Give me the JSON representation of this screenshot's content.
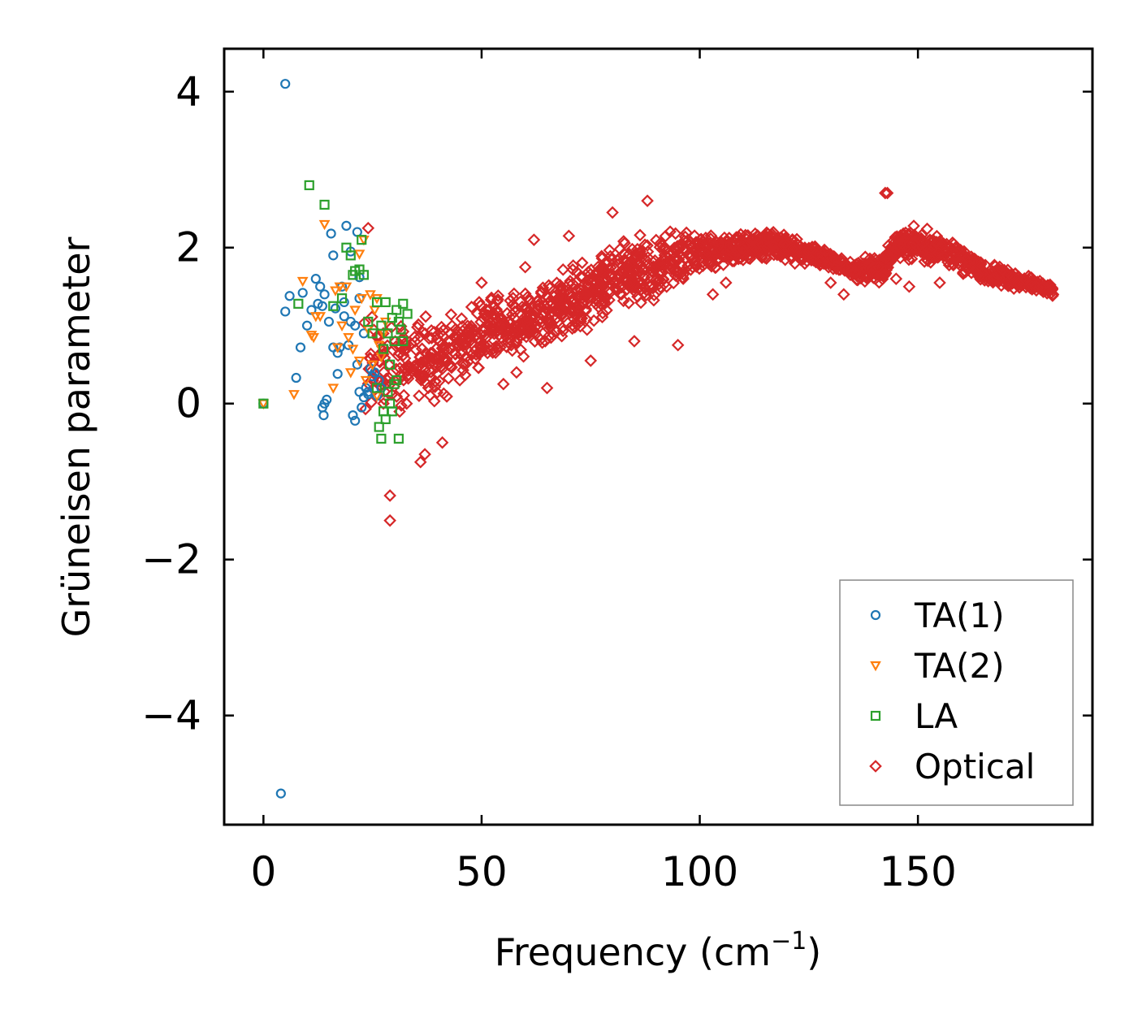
{
  "chart_data": {
    "type": "scatter",
    "title": "",
    "xlabel": "Frequency (cm",
    "xlabel_sup": "−1",
    "xlabel_close": ")",
    "ylabel": "Grüneisen parameter",
    "xlim": [
      -9,
      190
    ],
    "ylim": [
      -5.4,
      4.55
    ],
    "xticks": [
      0,
      50,
      100,
      150
    ],
    "xtick_labels": [
      "0",
      "50",
      "100",
      "150"
    ],
    "yticks": [
      -4,
      -2,
      0,
      2,
      4
    ],
    "ytick_labels": [
      "−4",
      "−2",
      "0",
      "2",
      "4"
    ],
    "grid": false,
    "legend_position": "bottom-right",
    "series": [
      {
        "name": "TA(1)",
        "marker": "circle",
        "color": "#1f77b4",
        "points": [
          [
            0,
            0
          ],
          [
            5,
            4.1
          ],
          [
            4,
            -5.0
          ],
          [
            5,
            1.18
          ],
          [
            6,
            1.38
          ],
          [
            7.5,
            0.33
          ],
          [
            8.5,
            0.72
          ],
          [
            9,
            1.42
          ],
          [
            10,
            1.0
          ],
          [
            11,
            1.2
          ],
          [
            12,
            1.6
          ],
          [
            12.5,
            1.28
          ],
          [
            13,
            1.5
          ],
          [
            13.5,
            1.25
          ],
          [
            14,
            1.4
          ],
          [
            13.5,
            -0.05
          ],
          [
            13.8,
            -0.15
          ],
          [
            14,
            0.0
          ],
          [
            14.5,
            0.05
          ],
          [
            15,
            1.05
          ],
          [
            15.5,
            2.18
          ],
          [
            16,
            1.9
          ],
          [
            16.5,
            1.22
          ],
          [
            17,
            0.65
          ],
          [
            17,
            0.38
          ],
          [
            17.5,
            0.72
          ],
          [
            18,
            1.5
          ],
          [
            18.5,
            1.12
          ],
          [
            19,
            2.28
          ],
          [
            19.5,
            0.75
          ],
          [
            20,
            1.95
          ],
          [
            20.5,
            -0.15
          ],
          [
            21,
            -0.22
          ],
          [
            21,
            1.0
          ],
          [
            21.5,
            2.2
          ],
          [
            22,
            1.62
          ],
          [
            22,
            0.15
          ],
          [
            22.5,
            -0.05
          ],
          [
            23,
            0.08
          ],
          [
            23.5,
            0.2
          ],
          [
            24,
            0.15
          ],
          [
            24.5,
            0.45
          ],
          [
            25,
            0.35
          ],
          [
            26,
            0.1
          ],
          [
            26.5,
            0.3
          ],
          [
            27,
            0.2
          ],
          [
            20,
            1.05
          ],
          [
            22,
            1.35
          ],
          [
            16,
            0.72
          ],
          [
            23,
            0.9
          ],
          [
            21.5,
            0.5
          ],
          [
            24,
            0.12
          ],
          [
            18.5,
            1.3
          ],
          [
            25.5,
            0.4
          ]
        ]
      },
      {
        "name": "TA(2)",
        "marker": "triangle-down",
        "color": "#ff7f0e",
        "points": [
          [
            0,
            0
          ],
          [
            7,
            0.12
          ],
          [
            9,
            1.57
          ],
          [
            11,
            0.88
          ],
          [
            11.5,
            0.85
          ],
          [
            12,
            1.12
          ],
          [
            13,
            1.12
          ],
          [
            14,
            2.3
          ],
          [
            16,
            0.2
          ],
          [
            17,
            0.72
          ],
          [
            17.5,
            1.5
          ],
          [
            18,
            1.0
          ],
          [
            19,
            1.5
          ],
          [
            20,
            0.4
          ],
          [
            20.5,
            0.7
          ],
          [
            21,
            1.2
          ],
          [
            22,
            1.92
          ],
          [
            22.5,
            1.35
          ],
          [
            23,
            2.1
          ],
          [
            24,
            0.95
          ],
          [
            25,
            0.5
          ],
          [
            25.5,
            1.2
          ],
          [
            26,
            1.35
          ],
          [
            26.5,
            0.75
          ],
          [
            27,
            0.6
          ],
          [
            27.5,
            0.9
          ],
          [
            28,
            1.05
          ],
          [
            24.5,
            1.4
          ],
          [
            23.5,
            0.3
          ],
          [
            19.5,
            0.85
          ],
          [
            16.5,
            1.45
          ],
          [
            26,
            0.1
          ],
          [
            22,
            0.55
          ]
        ]
      },
      {
        "name": "LA",
        "marker": "square",
        "color": "#2ca02c",
        "points": [
          [
            0,
            0
          ],
          [
            8,
            1.28
          ],
          [
            10.5,
            2.8
          ],
          [
            14,
            2.55
          ],
          [
            16,
            1.25
          ],
          [
            18,
            1.35
          ],
          [
            19,
            2.0
          ],
          [
            20,
            1.9
          ],
          [
            20.5,
            1.65
          ],
          [
            21,
            1.7
          ],
          [
            22,
            1.72
          ],
          [
            22.5,
            2.1
          ],
          [
            23,
            1.65
          ],
          [
            24,
            1.05
          ],
          [
            25,
            0.9
          ],
          [
            26,
            1.3
          ],
          [
            26.5,
            -0.3
          ],
          [
            27,
            -0.45
          ],
          [
            27.5,
            0.7
          ],
          [
            28,
            1.3
          ],
          [
            28.5,
            0.15
          ],
          [
            29,
            0.0
          ],
          [
            29.5,
            -0.1
          ],
          [
            30,
            0.25
          ],
          [
            30.5,
            1.2
          ],
          [
            31,
            1.05
          ],
          [
            31.5,
            0.95
          ],
          [
            32,
            0.8
          ],
          [
            33,
            1.15
          ],
          [
            31,
            -0.45
          ],
          [
            28,
            -0.2
          ],
          [
            29,
            0.5
          ],
          [
            30,
            0.8
          ],
          [
            26,
            0.2
          ],
          [
            27,
            1.0
          ],
          [
            32,
            1.28
          ],
          [
            29.5,
            1.1
          ],
          [
            28.5,
            0.9
          ],
          [
            30.5,
            0.3
          ],
          [
            27.5,
            -0.1
          ]
        ]
      },
      {
        "name": "Optical",
        "marker": "diamond",
        "color": "#d62728",
        "generator": {
          "min_frequency": 23,
          "max_frequency": 181,
          "count": 1800,
          "profile": [
            [
              23,
              0.5
            ],
            [
              30,
              0.45
            ],
            [
              35,
              0.5
            ],
            [
              40,
              0.55
            ],
            [
              45,
              0.75
            ],
            [
              50,
              0.9
            ],
            [
              55,
              1.0
            ],
            [
              60,
              1.05
            ],
            [
              65,
              1.15
            ],
            [
              70,
              1.3
            ],
            [
              75,
              1.45
            ],
            [
              80,
              1.6
            ],
            [
              85,
              1.7
            ],
            [
              90,
              1.75
            ],
            [
              95,
              1.85
            ],
            [
              100,
              1.95
            ],
            [
              105,
              1.95
            ],
            [
              110,
              2.0
            ],
            [
              115,
              2.05
            ],
            [
              120,
              2.0
            ],
            [
              125,
              1.9
            ],
            [
              130,
              1.85
            ],
            [
              135,
              1.7
            ],
            [
              138,
              1.72
            ],
            [
              142,
              1.72
            ],
            [
              145,
              2.0
            ],
            [
              150,
              2.05
            ],
            [
              155,
              1.95
            ],
            [
              160,
              1.85
            ],
            [
              165,
              1.7
            ],
            [
              170,
              1.62
            ],
            [
              175,
              1.55
            ],
            [
              181,
              1.45
            ]
          ],
          "spread": [
            [
              23,
              0.75
            ],
            [
              45,
              0.55
            ],
            [
              60,
              0.45
            ],
            [
              80,
              0.5
            ],
            [
              95,
              0.4
            ],
            [
              100,
              0.25
            ],
            [
              135,
              0.12
            ],
            [
              140,
              0.2
            ],
            [
              150,
              0.25
            ],
            [
              181,
              0.08
            ]
          ]
        },
        "points": [
          [
            29,
            -1.18
          ],
          [
            29,
            -1.5
          ],
          [
            24,
            2.25
          ],
          [
            143,
            2.7
          ],
          [
            142.5,
            2.7
          ],
          [
            88,
            2.6
          ],
          [
            80,
            2.45
          ],
          [
            62,
            2.1
          ],
          [
            36,
            -0.75
          ],
          [
            37,
            -0.65
          ],
          [
            41,
            -0.5
          ],
          [
            45,
            0.3
          ],
          [
            55,
            0.25
          ],
          [
            58,
            0.4
          ],
          [
            65,
            0.2
          ],
          [
            75,
            0.55
          ],
          [
            95,
            0.75
          ],
          [
            85,
            0.8
          ],
          [
            106,
            1.55
          ],
          [
            103,
            1.4
          ],
          [
            130,
            1.55
          ],
          [
            133,
            1.4
          ],
          [
            148,
            1.5
          ],
          [
            145,
            1.6
          ],
          [
            155,
            1.55
          ],
          [
            60,
            1.75
          ],
          [
            70,
            2.15
          ],
          [
            50,
            1.55
          ]
        ]
      }
    ]
  }
}
